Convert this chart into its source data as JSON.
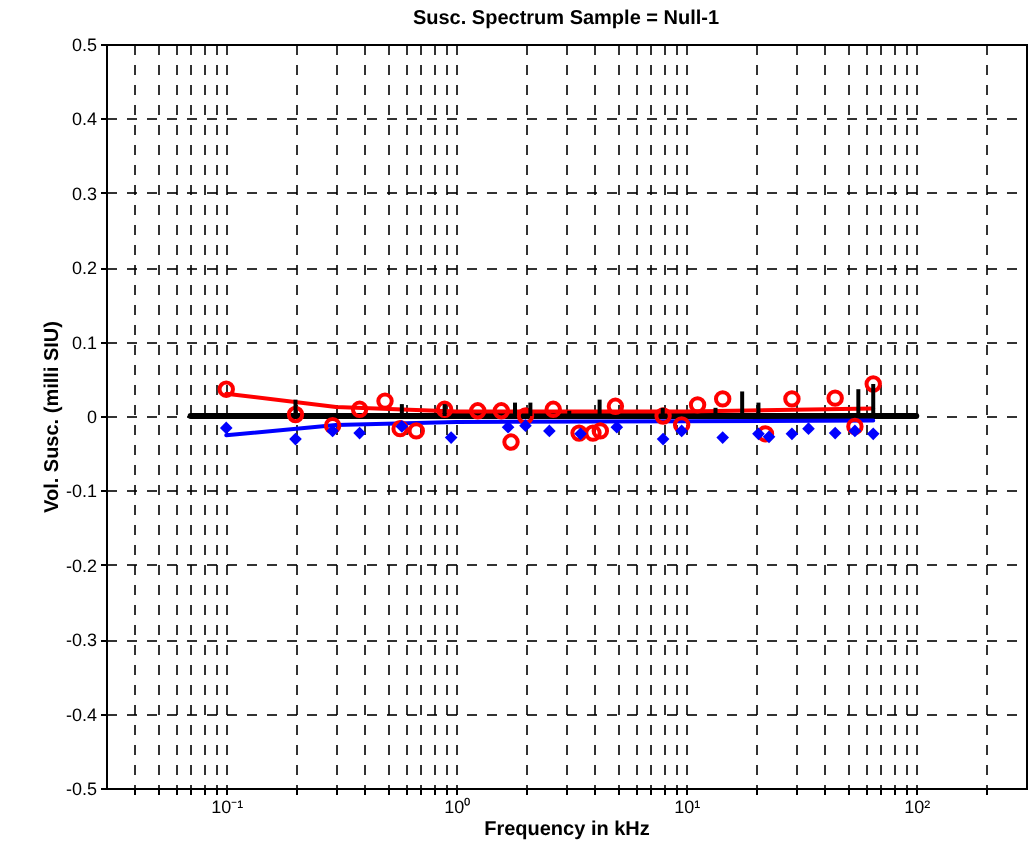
{
  "chart_data": {
    "type": "scatter",
    "title": "Susc. Spectrum Sample = Null-1",
    "xlabel": "Frequency in kHz",
    "ylabel": "Vol. Susc. (milli SIU)",
    "log": "x",
    "grid": true,
    "xlim": [
      0.03,
      300
    ],
    "xticks": [
      {
        "value": 0.04,
        "label": null
      },
      {
        "value": 0.05,
        "label": null
      },
      {
        "value": 0.06,
        "label": null
      },
      {
        "value": 0.07,
        "label": null
      },
      {
        "value": 0.08,
        "label": null
      },
      {
        "value": 0.09,
        "label": null
      },
      {
        "value": 0.1,
        "label": "10⁻¹"
      },
      {
        "value": 0.2,
        "label": null
      },
      {
        "value": 0.3,
        "label": null
      },
      {
        "value": 0.4,
        "label": null
      },
      {
        "value": 0.5,
        "label": null
      },
      {
        "value": 0.6,
        "label": null
      },
      {
        "value": 0.7,
        "label": null
      },
      {
        "value": 0.8,
        "label": null
      },
      {
        "value": 0.9,
        "label": null
      },
      {
        "value": 1,
        "label": "10⁰"
      },
      {
        "value": 2,
        "label": null
      },
      {
        "value": 3,
        "label": null
      },
      {
        "value": 4,
        "label": null
      },
      {
        "value": 5,
        "label": null
      },
      {
        "value": 6,
        "label": null
      },
      {
        "value": 7,
        "label": null
      },
      {
        "value": 8,
        "label": null
      },
      {
        "value": 9,
        "label": null
      },
      {
        "value": 10,
        "label": "10¹"
      },
      {
        "value": 20,
        "label": null
      },
      {
        "value": 30,
        "label": null
      },
      {
        "value": 40,
        "label": null
      },
      {
        "value": 50,
        "label": null
      },
      {
        "value": 60,
        "label": null
      },
      {
        "value": 70,
        "label": null
      },
      {
        "value": 80,
        "label": null
      },
      {
        "value": 90,
        "label": null
      },
      {
        "value": 100,
        "label": "10²"
      },
      {
        "value": 200,
        "label": null
      }
    ],
    "ylim": [
      -0.5,
      0.5
    ],
    "yticks": [
      -0.5,
      -0.4,
      -0.3,
      -0.2,
      -0.1,
      0,
      0.1,
      0.2,
      0.3,
      0.4,
      0.5
    ],
    "series": [
      {
        "type": "line",
        "color": "#000000",
        "marker": "none",
        "x": [
          0.07,
          100
        ],
        "values": [
          0,
          0
        ]
      },
      {
        "type": "bar",
        "color": "#000000",
        "marker": "none",
        "x": [
          0.2,
          0.58,
          0.89,
          1.8,
          2.1,
          3.1,
          4.2,
          7.9,
          13.4,
          17.5,
          20.6,
          56,
          65
        ],
        "values": [
          0.022,
          0.016,
          0.016,
          0.018,
          0.018,
          0.007,
          0.022,
          0.011,
          0.011,
          0.033,
          0.018,
          0.036,
          0.043
        ]
      },
      {
        "type": "line",
        "color": "#ff0000",
        "marker": "none",
        "x": [
          0.1,
          0.3,
          1,
          10,
          65
        ],
        "values": [
          0.03,
          0.012,
          0.006,
          0.006,
          0.01
        ]
      },
      {
        "type": "line",
        "color": "#0000ff",
        "marker": "none",
        "x": [
          0.1,
          0.3,
          1,
          10,
          65
        ],
        "values": [
          -0.026,
          -0.012,
          -0.008,
          -0.007,
          -0.006
        ]
      },
      {
        "color": "#ff0000",
        "marker": "circle",
        "x": [
          0.1,
          0.2,
          0.29,
          0.38,
          0.49,
          0.57,
          0.67,
          0.89,
          1.24,
          1.57,
          1.73,
          2,
          2.64,
          3.42,
          3.93,
          4.23,
          4.92,
          7.93,
          9.55,
          11.2,
          14.4,
          22.1,
          28.8,
          44.4,
          54.1,
          65
        ],
        "values": [
          0.036,
          0.002,
          -0.013,
          0.009,
          0.02,
          -0.017,
          -0.02,
          0.009,
          0.007,
          0.007,
          -0.035,
          0,
          0.009,
          -0.023,
          -0.023,
          -0.02,
          0.013,
          0,
          -0.012,
          0.015,
          0.023,
          -0.024,
          0.023,
          0.024,
          -0.014,
          0.043
        ]
      },
      {
        "color": "#0000ff",
        "marker": "diamond",
        "x": [
          0.1,
          0.2,
          0.29,
          0.38,
          0.58,
          0.95,
          1.68,
          2,
          2.54,
          3.47,
          4.99,
          7.93,
          9.55,
          14.4,
          20.6,
          22.9,
          28.8,
          34,
          44.4,
          54.1,
          65
        ],
        "values": [
          -0.016,
          -0.031,
          -0.02,
          -0.023,
          -0.014,
          -0.029,
          -0.015,
          -0.013,
          -0.02,
          -0.024,
          -0.015,
          -0.031,
          -0.02,
          -0.029,
          -0.024,
          -0.028,
          -0.024,
          -0.017,
          -0.023,
          -0.02,
          -0.024
        ]
      }
    ]
  }
}
